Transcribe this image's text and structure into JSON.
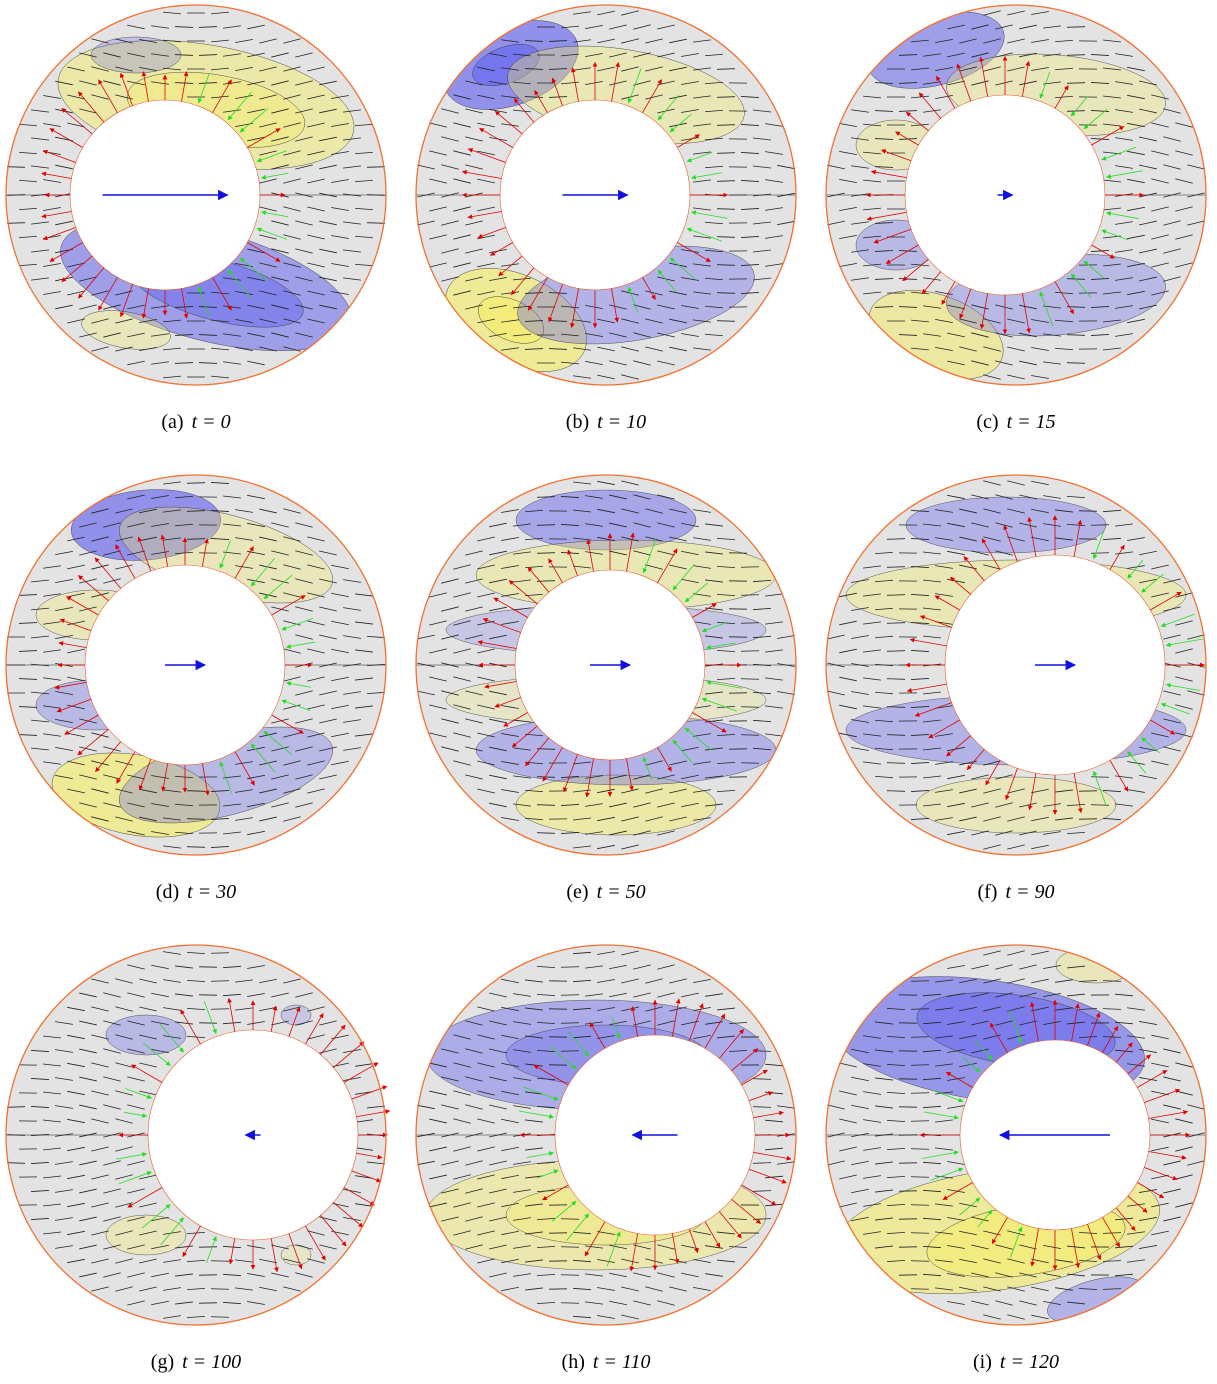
{
  "panels": [
    {
      "label": "(a)",
      "caption": "t = 0"
    },
    {
      "label": "(b)",
      "caption": "t = 10"
    },
    {
      "label": "(c)",
      "caption": "t = 15"
    },
    {
      "label": "(d)",
      "caption": "t = 30"
    },
    {
      "label": "(e)",
      "caption": "t = 50"
    },
    {
      "label": "(f)",
      "caption": "t = 90"
    },
    {
      "label": "(g)",
      "caption": "t = 100"
    },
    {
      "label": "(h)",
      "caption": "t = 110"
    },
    {
      "label": "(i)",
      "caption": "t = 120"
    }
  ]
}
